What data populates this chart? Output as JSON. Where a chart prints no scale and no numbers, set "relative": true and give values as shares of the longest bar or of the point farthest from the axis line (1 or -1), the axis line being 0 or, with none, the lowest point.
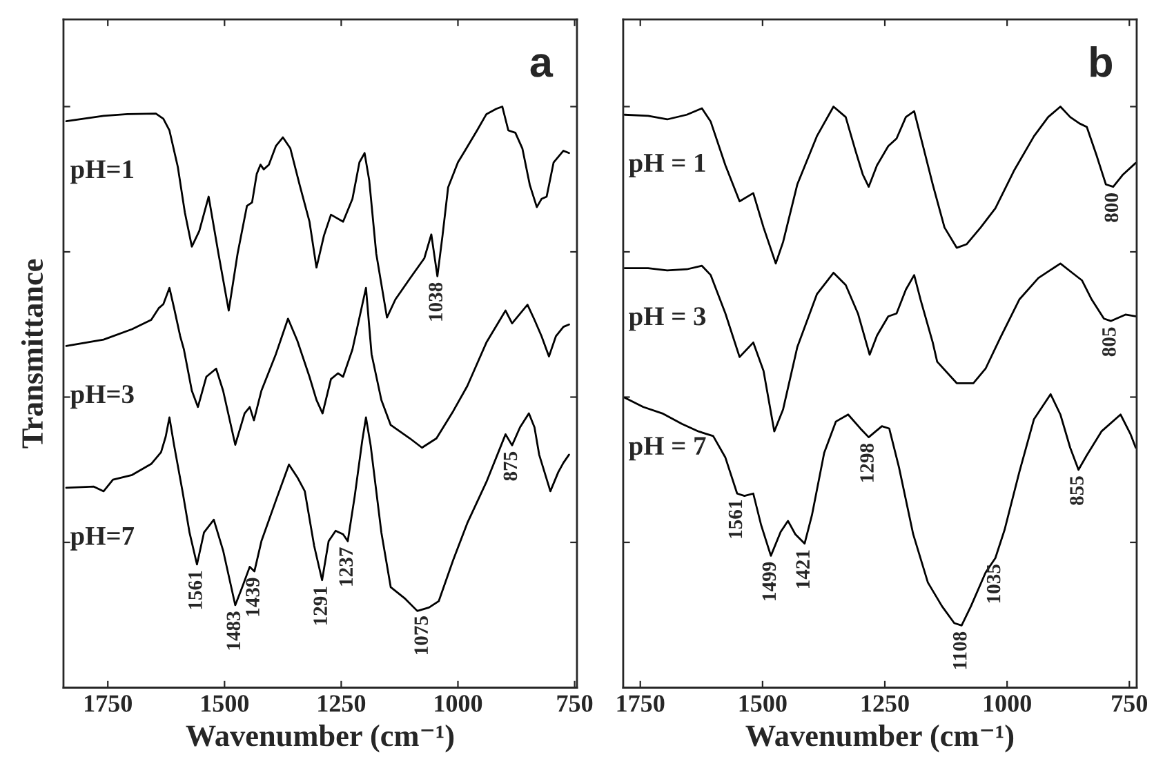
{
  "chart_data": [
    {
      "type": "line",
      "title": "a",
      "xlabel": "Wavenumber (cm⁻¹)",
      "ylabel": "Transmittance",
      "relative": true,
      "xlim": [
        1845,
        745
      ],
      "xticks": [
        1750,
        1500,
        1250,
        1000,
        750
      ],
      "legend": false,
      "series": [
        {
          "name": "pH=1",
          "color": "#000000",
          "x": [
            1839,
            1759,
            1708,
            1647,
            1631,
            1618,
            1600,
            1585,
            1570,
            1554,
            1534,
            1513,
            1491,
            1472,
            1452,
            1441,
            1431,
            1423,
            1416,
            1405,
            1390,
            1375,
            1359,
            1339,
            1318,
            1303,
            1287,
            1272,
            1246,
            1226,
            1211,
            1200,
            1190,
            1175,
            1152,
            1134,
            1103,
            1072,
            1057,
            1044,
            1033,
            1021,
            1000,
            985,
            959,
            939,
            918,
            905,
            892,
            877,
            862,
            846,
            831,
            821,
            810,
            795,
            774,
            762
          ],
          "values": [
            0.975,
            0.984,
            0.987,
            0.988,
            0.979,
            0.959,
            0.896,
            0.818,
            0.759,
            0.786,
            0.845,
            0.747,
            0.649,
            0.747,
            0.829,
            0.835,
            0.884,
            0.9,
            0.892,
            0.9,
            0.932,
            0.947,
            0.928,
            0.865,
            0.802,
            0.723,
            0.778,
            0.814,
            0.802,
            0.841,
            0.904,
            0.92,
            0.873,
            0.747,
            0.637,
            0.668,
            0.704,
            0.739,
            0.78,
            0.708,
            0.778,
            0.861,
            0.904,
            0.924,
            0.959,
            0.987,
            0.996,
            1.0,
            0.959,
            0.955,
            0.928,
            0.865,
            0.827,
            0.841,
            0.845,
            0.904,
            0.924,
            0.92
          ]
        },
        {
          "name": "pH=3",
          "color": "#000000",
          "x": [
            1839,
            1759,
            1698,
            1657,
            1641,
            1631,
            1618,
            1608,
            1595,
            1587,
            1570,
            1557,
            1539,
            1518,
            1503,
            1477,
            1457,
            1446,
            1437,
            1421,
            1390,
            1364,
            1344,
            1318,
            1303,
            1290,
            1272,
            1257,
            1246,
            1226,
            1197,
            1185,
            1164,
            1144,
            1103,
            1077,
            1046,
            1010,
            980,
            939,
            898,
            884,
            851,
            836,
            821,
            805,
            790,
            774,
            762
          ],
          "values": [
            0.588,
            0.599,
            0.617,
            0.633,
            0.653,
            0.66,
            0.688,
            0.653,
            0.605,
            0.582,
            0.511,
            0.483,
            0.535,
            0.549,
            0.511,
            0.418,
            0.472,
            0.483,
            0.46,
            0.511,
            0.574,
            0.635,
            0.597,
            0.535,
            0.495,
            0.472,
            0.531,
            0.541,
            0.535,
            0.582,
            0.688,
            0.574,
            0.495,
            0.452,
            0.429,
            0.413,
            0.429,
            0.476,
            0.519,
            0.594,
            0.649,
            0.627,
            0.659,
            0.633,
            0.605,
            0.57,
            0.605,
            0.621,
            0.625
          ]
        },
        {
          "name": "pH=7",
          "color": "#000000",
          "x": [
            1839,
            1780,
            1759,
            1739,
            1698,
            1657,
            1636,
            1626,
            1618,
            1608,
            1590,
            1575,
            1559,
            1544,
            1523,
            1503,
            1477,
            1462,
            1446,
            1436,
            1421,
            1390,
            1362,
            1344,
            1328,
            1308,
            1291,
            1277,
            1262,
            1246,
            1236,
            1221,
            1205,
            1197,
            1187,
            1164,
            1144,
            1113,
            1087,
            1062,
            1041,
            1010,
            980,
            939,
            898,
            884,
            867,
            848,
            836,
            826,
            802,
            785,
            774,
            762
          ],
          "values": [
            0.344,
            0.346,
            0.338,
            0.358,
            0.366,
            0.385,
            0.405,
            0.432,
            0.465,
            0.417,
            0.338,
            0.267,
            0.212,
            0.267,
            0.289,
            0.236,
            0.142,
            0.173,
            0.208,
            0.2,
            0.252,
            0.322,
            0.384,
            0.362,
            0.338,
            0.244,
            0.185,
            0.252,
            0.27,
            0.264,
            0.252,
            0.33,
            0.425,
            0.465,
            0.417,
            0.267,
            0.173,
            0.153,
            0.132,
            0.138,
            0.149,
            0.22,
            0.283,
            0.354,
            0.436,
            0.417,
            0.448,
            0.472,
            0.448,
            0.401,
            0.338,
            0.371,
            0.387,
            0.401
          ]
        }
      ],
      "annotations": [
        {
          "text": "1038",
          "x": 1044,
          "y": 0.708
        },
        {
          "text": "1561",
          "x": 1559,
          "y": 0.212
        },
        {
          "text": "1483",
          "x": 1477,
          "y": 0.142
        },
        {
          "text": "1439",
          "x": 1436,
          "y": 0.2
        },
        {
          "text": "1291",
          "x": 1291,
          "y": 0.185
        },
        {
          "text": "1237",
          "x": 1236,
          "y": 0.252
        },
        {
          "text": "1075",
          "x": 1075,
          "y": 0.134
        },
        {
          "text": "875",
          "x": 884,
          "y": 0.417
        }
      ]
    },
    {
      "type": "line",
      "title": "b",
      "xlabel": "Wavenumber (cm⁻¹)",
      "relative": true,
      "xlim": [
        1785,
        735
      ],
      "xticks": [
        1750,
        1500,
        1250,
        1000,
        750
      ],
      "legend": false,
      "series": [
        {
          "name": "pH = 1",
          "color": "#000000",
          "x": [
            1782,
            1734,
            1695,
            1655,
            1624,
            1606,
            1576,
            1547,
            1519,
            1498,
            1473,
            1458,
            1429,
            1389,
            1355,
            1330,
            1310,
            1295,
            1283,
            1266,
            1243,
            1226,
            1207,
            1190,
            1177,
            1152,
            1128,
            1103,
            1083,
            1054,
            1024,
            985,
            945,
            916,
            891,
            871,
            852,
            837,
            817,
            798,
            783,
            763,
            737
          ],
          "values": [
            0.986,
            0.984,
            0.978,
            0.986,
            0.997,
            0.974,
            0.899,
            0.837,
            0.851,
            0.792,
            0.73,
            0.767,
            0.866,
            0.949,
            1.0,
            0.982,
            0.924,
            0.883,
            0.862,
            0.899,
            0.932,
            0.945,
            0.982,
            0.992,
            0.949,
            0.866,
            0.792,
            0.757,
            0.763,
            0.792,
            0.825,
            0.891,
            0.949,
            0.982,
            1.0,
            0.982,
            0.971,
            0.965,
            0.916,
            0.866,
            0.862,
            0.883,
            0.903
          ]
        },
        {
          "name": "pH = 3",
          "color": "#000000",
          "x": [
            1782,
            1734,
            1695,
            1655,
            1624,
            1606,
            1576,
            1547,
            1519,
            1498,
            1476,
            1458,
            1429,
            1389,
            1355,
            1330,
            1305,
            1281,
            1266,
            1243,
            1226,
            1207,
            1190,
            1177,
            1152,
            1143,
            1103,
            1069,
            1044,
            1014,
            975,
            936,
            891,
            867,
            847,
            827,
            802,
            788,
            758,
            737
          ],
          "values": [
            0.722,
            0.722,
            0.718,
            0.72,
            0.726,
            0.71,
            0.644,
            0.569,
            0.594,
            0.545,
            0.441,
            0.479,
            0.586,
            0.677,
            0.714,
            0.693,
            0.644,
            0.573,
            0.606,
            0.639,
            0.644,
            0.685,
            0.71,
            0.668,
            0.594,
            0.561,
            0.524,
            0.524,
            0.549,
            0.602,
            0.668,
            0.705,
            0.73,
            0.714,
            0.701,
            0.668,
            0.635,
            0.631,
            0.642,
            0.639
          ]
        },
        {
          "name": "pH = 7",
          "color": "#000000",
          "x": [
            1782,
            1744,
            1705,
            1665,
            1631,
            1601,
            1576,
            1552,
            1537,
            1519,
            1503,
            1483,
            1463,
            1448,
            1433,
            1414,
            1399,
            1374,
            1350,
            1325,
            1300,
            1283,
            1256,
            1241,
            1221,
            1192,
            1162,
            1133,
            1108,
            1093,
            1074,
            1044,
            1024,
            1005,
            975,
            945,
            911,
            891,
            871,
            854,
            837,
            807,
            768,
            748,
            737
          ],
          "values": [
            0.499,
            0.483,
            0.472,
            0.454,
            0.441,
            0.433,
            0.396,
            0.334,
            0.33,
            0.334,
            0.28,
            0.227,
            0.268,
            0.287,
            0.264,
            0.248,
            0.297,
            0.404,
            0.458,
            0.47,
            0.446,
            0.431,
            0.45,
            0.446,
            0.379,
            0.264,
            0.181,
            0.14,
            0.111,
            0.107,
            0.14,
            0.198,
            0.223,
            0.272,
            0.371,
            0.462,
            0.505,
            0.47,
            0.413,
            0.375,
            0.4,
            0.441,
            0.47,
            0.437,
            0.413
          ]
        }
      ],
      "annotations": [
        {
          "text": "800",
          "x": 783,
          "y": 0.862
        },
        {
          "text": "805",
          "x": 788,
          "y": 0.631
        },
        {
          "text": "1561",
          "x": 1552,
          "y": 0.334
        },
        {
          "text": "1499",
          "x": 1483,
          "y": 0.227
        },
        {
          "text": "1421",
          "x": 1414,
          "y": 0.248
        },
        {
          "text": "1298",
          "x": 1283,
          "y": 0.431
        },
        {
          "text": "1108",
          "x": 1093,
          "y": 0.107
        },
        {
          "text": "1035",
          "x": 1024,
          "y": 0.223
        },
        {
          "text": "855",
          "x": 854,
          "y": 0.375
        }
      ]
    }
  ]
}
